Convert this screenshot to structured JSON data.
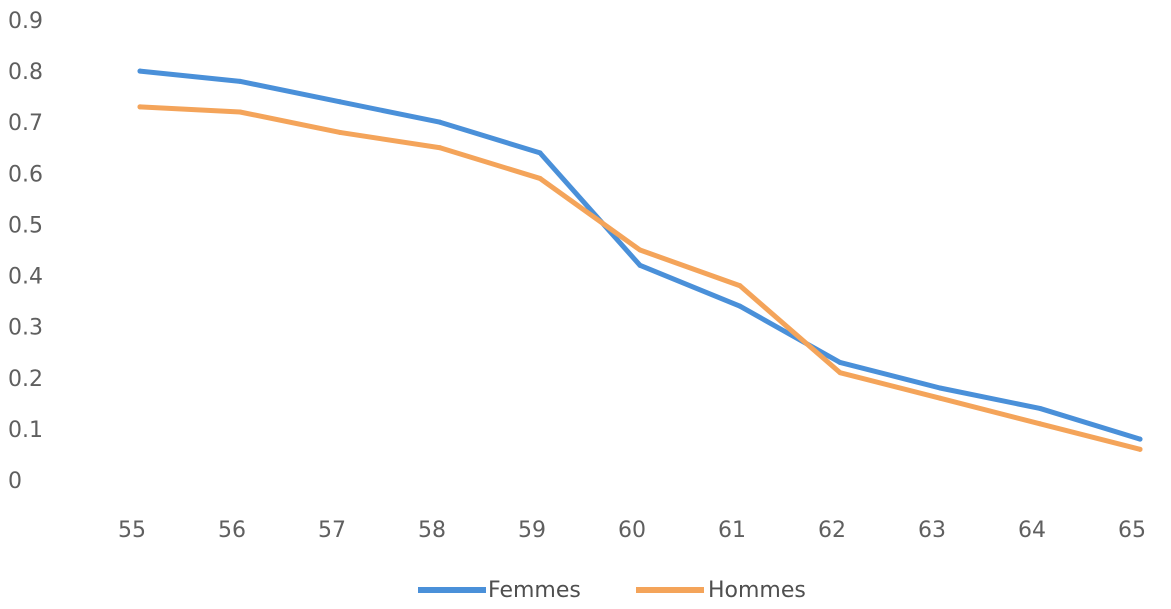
{
  "chart_data": {
    "type": "line",
    "x": [
      55,
      56,
      57,
      58,
      59,
      60,
      61,
      62,
      63,
      64,
      65
    ],
    "y_ticks": [
      "0",
      "0.1",
      "0.2",
      "0.3",
      "0.4",
      "0.5",
      "0.6",
      "0.7",
      "0.8",
      "0.9"
    ],
    "x_ticks": [
      "55",
      "56",
      "57",
      "58",
      "59",
      "60",
      "61",
      "62",
      "63",
      "64",
      "65"
    ],
    "ylim": [
      0,
      0.9
    ],
    "grid": false,
    "legend_position": "bottom",
    "series": [
      {
        "name": "Femmes",
        "color": "#4a90d9",
        "values": [
          0.8,
          0.78,
          0.74,
          0.7,
          0.64,
          0.42,
          0.34,
          0.23,
          0.18,
          0.14,
          0.08
        ]
      },
      {
        "name": "Hommes",
        "color": "#f4a45a",
        "values": [
          0.73,
          0.72,
          0.68,
          0.65,
          0.59,
          0.45,
          0.38,
          0.21,
          0.16,
          0.11,
          0.06
        ]
      }
    ]
  }
}
